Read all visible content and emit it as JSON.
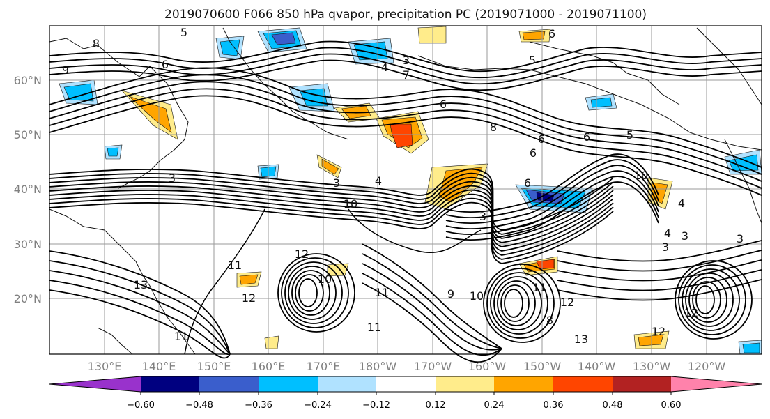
{
  "title": "2019070600 F066 850 hPa qvapor, precipitation PC (2019071000 - 2019071100)",
  "map": {
    "lat_ticks": [
      "60°N",
      "50°N",
      "40°N",
      "30°N",
      "20°N"
    ],
    "lon_ticks": [
      "130°E",
      "140°E",
      "150°E",
      "160°E",
      "170°E",
      "180°W",
      "170°W",
      "160°W",
      "150°W",
      "140°W",
      "130°W",
      "120°W"
    ],
    "contour_labels": [
      "9",
      "8",
      "6",
      "5",
      "6",
      "3",
      "4",
      "7",
      "6",
      "5",
      "8",
      "6",
      "3",
      "3",
      "4",
      "10",
      "3",
      "4",
      "6",
      "8",
      "6",
      "5",
      "6",
      "10",
      "3",
      "4",
      "3",
      "12",
      "11",
      "13",
      "11",
      "12",
      "9",
      "10",
      "11",
      "3",
      "12",
      "12",
      "13",
      "11",
      "10",
      "11",
      "12"
    ]
  },
  "colorbar": {
    "labels": [
      "−0.60",
      "−0.48",
      "−0.36",
      "−0.24",
      "−0.12",
      "0.12",
      "0.24",
      "0.36",
      "0.48",
      "0.60"
    ],
    "colors": [
      "#9932CC",
      "#000080",
      "#3A5ECC",
      "#00BFFF",
      "#B0E2FF",
      "#FFFFFF",
      "#FFEC8B",
      "#FFA500",
      "#FF4500",
      "#B22222",
      "#FF82AB"
    ]
  }
}
